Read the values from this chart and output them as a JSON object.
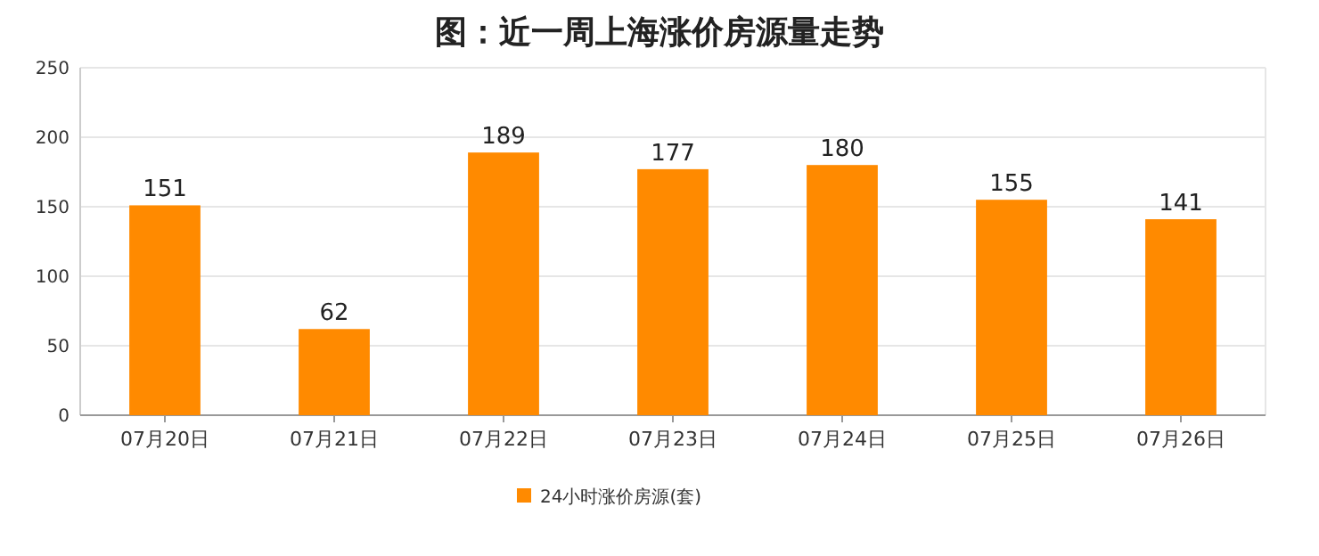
{
  "chart_data": {
    "type": "bar",
    "title": "图：近一周上海涨价房源量走势",
    "categories": [
      "07月20日",
      "07月21日",
      "07月22日",
      "07月23日",
      "07月24日",
      "07月25日",
      "07月26日"
    ],
    "series": [
      {
        "name": "24小时涨价房源(套)",
        "color": "#ff8a00",
        "values": [
          151,
          62,
          189,
          177,
          180,
          155,
          141
        ]
      }
    ],
    "ylim": [
      0,
      250
    ],
    "yticks": [
      0,
      50,
      100,
      150,
      200,
      250
    ],
    "grid": "y",
    "legend": "bottom",
    "data_labels": true
  }
}
